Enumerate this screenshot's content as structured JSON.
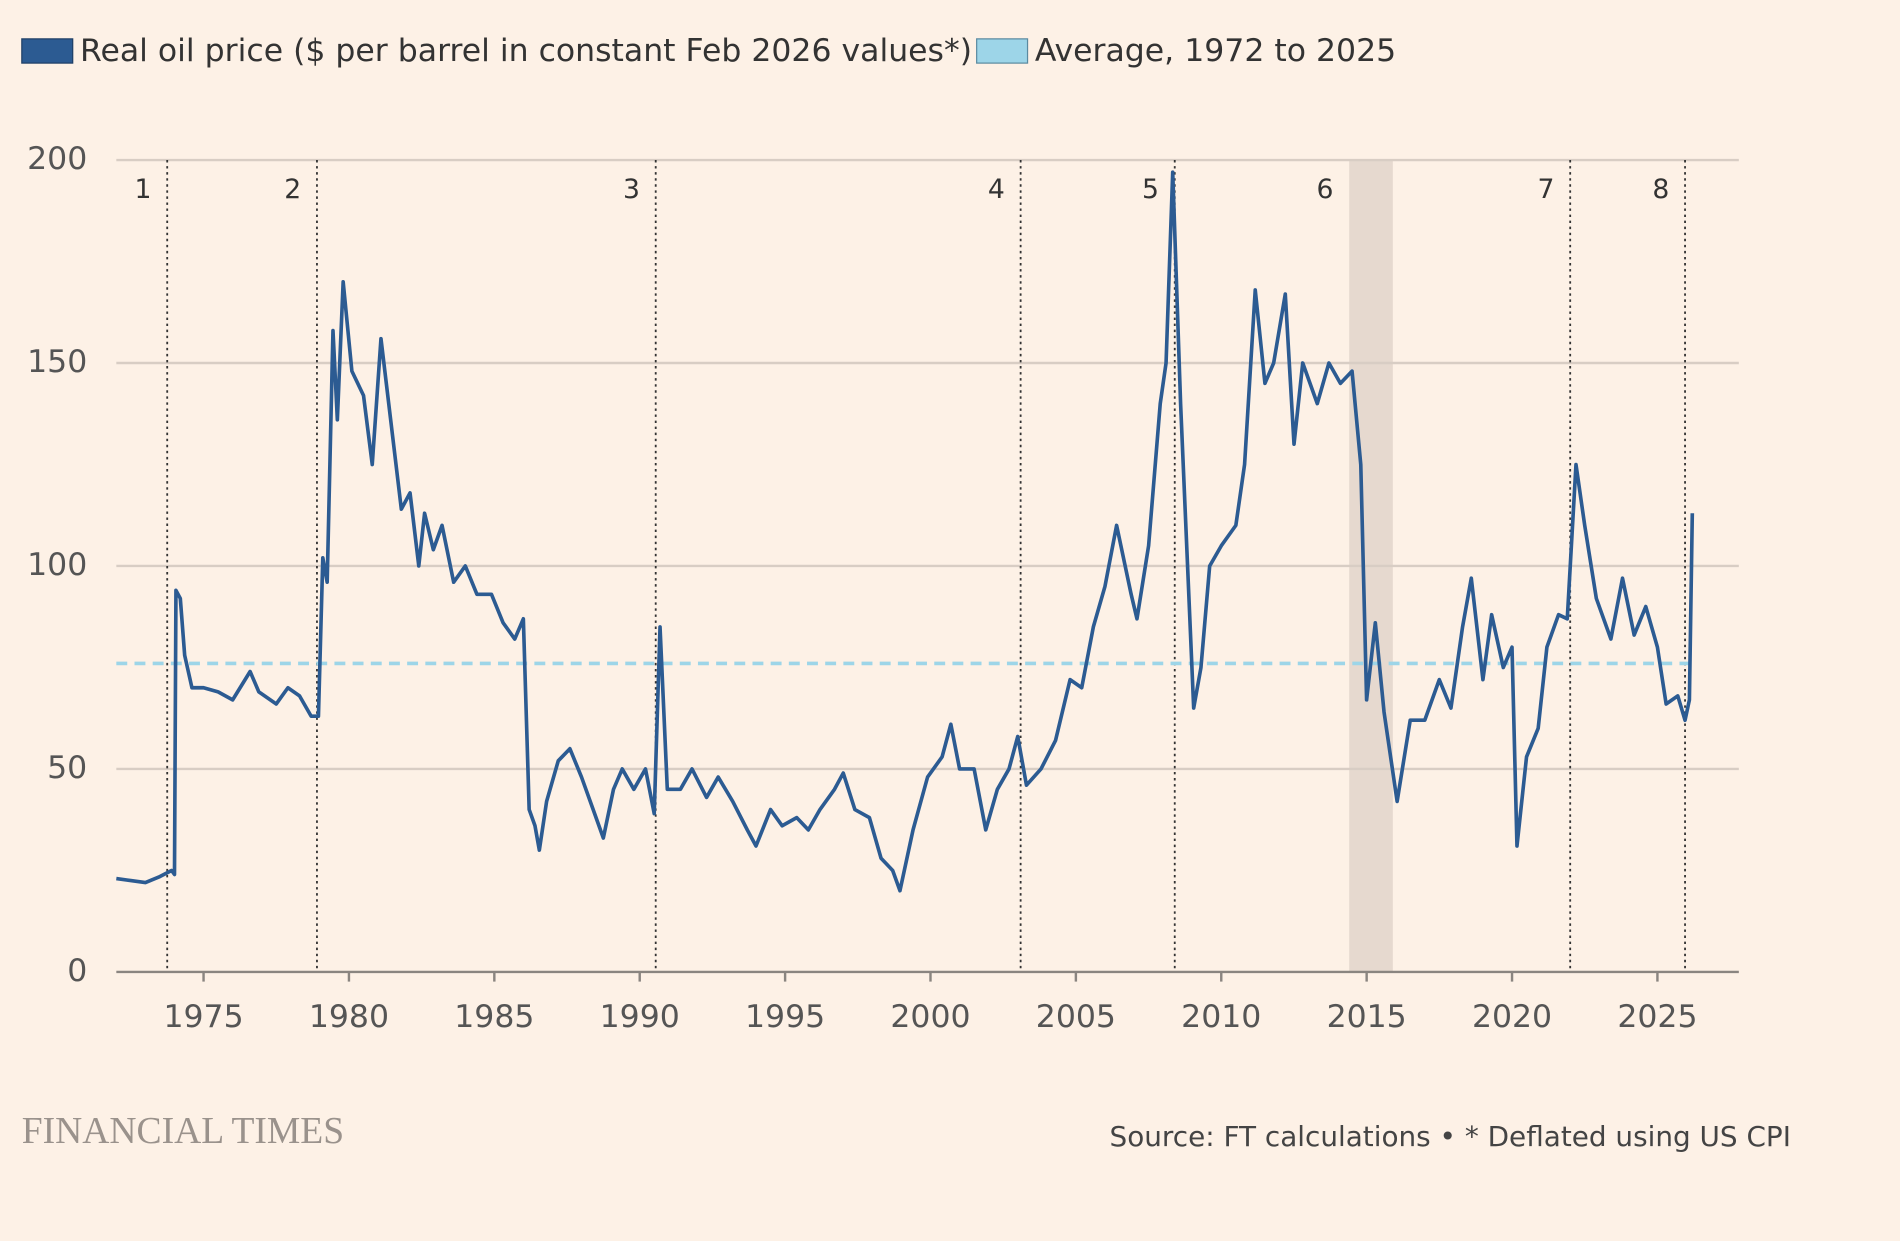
{
  "chart_data": {
    "type": "line",
    "series": [
      {
        "name": "Real oil price ($ per barrel in constant Feb 2026 values*)",
        "color": "#2c5b92",
        "values": [
          23,
          22.5,
          22,
          23.5,
          25,
          24,
          94,
          92,
          78,
          70,
          70,
          69,
          67,
          74,
          69,
          66,
          70,
          68,
          63,
          63,
          102,
          96,
          158,
          136,
          170,
          148,
          142,
          125,
          156,
          132,
          114,
          118,
          100,
          113,
          104,
          110,
          96,
          100,
          93,
          93,
          86,
          82,
          87,
          40,
          36,
          30,
          42,
          52,
          55,
          48,
          40,
          33,
          45,
          50,
          45,
          50,
          39,
          85,
          45,
          45,
          50,
          43,
          48,
          42,
          35,
          31,
          40,
          36,
          38,
          35,
          40,
          45,
          49,
          40,
          38,
          28,
          25,
          20,
          35,
          48,
          53,
          61,
          50,
          50,
          35,
          45,
          50,
          58,
          46,
          50,
          57,
          72,
          70,
          85,
          95,
          110,
          93,
          87,
          105,
          140,
          150,
          197,
          140,
          65,
          75,
          100,
          105,
          110,
          125,
          168,
          145,
          150,
          167,
          130,
          150,
          140,
          150,
          145,
          148,
          125,
          67,
          86,
          64,
          42,
          62,
          62,
          72,
          65,
          85,
          97,
          72,
          88,
          75,
          80,
          31,
          53,
          60,
          80,
          88,
          87,
          125,
          110,
          92,
          82,
          97,
          83,
          90,
          80,
          66,
          68,
          62,
          67,
          113
        ]
      }
    ],
    "x": [
      1972.0,
      1972.5,
      1973.0,
      1973.5,
      1973.9,
      1974.0,
      1974.05,
      1974.2,
      1974.35,
      1974.6,
      1975.0,
      1975.5,
      1976.0,
      1976.6,
      1976.9,
      1977.5,
      1977.9,
      1978.3,
      1978.7,
      1978.95,
      1979.1,
      1979.25,
      1979.45,
      1979.6,
      1979.8,
      1980.1,
      1980.5,
      1980.8,
      1981.1,
      1981.5,
      1981.8,
      1982.1,
      1982.4,
      1982.6,
      1982.9,
      1983.2,
      1983.6,
      1984.0,
      1984.4,
      1984.9,
      1985.3,
      1985.7,
      1986.0,
      1986.2,
      1986.4,
      1986.55,
      1986.8,
      1987.2,
      1987.6,
      1988.0,
      1988.4,
      1988.75,
      1989.1,
      1989.4,
      1989.8,
      1990.2,
      1990.5,
      1990.7,
      1990.95,
      1991.4,
      1991.8,
      1992.3,
      1992.7,
      1993.2,
      1993.7,
      1994.0,
      1994.5,
      1994.9,
      1995.4,
      1995.8,
      1996.2,
      1996.7,
      1997.0,
      1997.4,
      1997.9,
      1998.3,
      1998.7,
      1998.95,
      1999.4,
      1999.9,
      2000.4,
      2000.7,
      2001.0,
      2001.5,
      2001.9,
      2002.3,
      2002.7,
      2003.0,
      2003.3,
      2003.8,
      2004.3,
      2004.8,
      2005.2,
      2005.6,
      2006.0,
      2006.4,
      2006.9,
      2007.1,
      2007.5,
      2007.9,
      2008.1,
      2008.33,
      2008.6,
      2009.05,
      2009.3,
      2009.6,
      2010.0,
      2010.5,
      2010.8,
      2011.17,
      2011.5,
      2011.8,
      2012.2,
      2012.5,
      2012.8,
      2013.3,
      2013.7,
      2014.1,
      2014.5,
      2014.8,
      2015.0,
      2015.3,
      2015.6,
      2016.05,
      2016.5,
      2017.0,
      2017.5,
      2017.9,
      2018.3,
      2018.6,
      2019.0,
      2019.3,
      2019.7,
      2020.0,
      2020.17,
      2020.5,
      2020.9,
      2021.2,
      2021.6,
      2021.9,
      2022.2,
      2022.5,
      2022.9,
      2023.4,
      2023.8,
      2024.2,
      2024.6,
      2025.0,
      2025.3,
      2025.7,
      2025.95,
      2026.1,
      2026.2
    ],
    "average": {
      "name": "Average, 1972 to 2025",
      "value": 76,
      "color": "#9dd5e8"
    },
    "events": [
      {
        "label": "1",
        "x": 1973.75
      },
      {
        "label": "2",
        "x": 1978.9
      },
      {
        "label": "3",
        "x": 1990.55
      },
      {
        "label": "4",
        "x": 2003.1
      },
      {
        "label": "5",
        "x": 2008.4
      },
      {
        "label": "7",
        "x": 2022.0
      },
      {
        "label": "8",
        "x": 2025.95
      }
    ],
    "shaded_range": {
      "label": "6",
      "range": [
        2014.4,
        2015.9
      ]
    },
    "xlim": [
      1972,
      2027.8
    ],
    "ylim": [
      0,
      200
    ],
    "xticks": [
      1975,
      1980,
      1985,
      1990,
      1995,
      2000,
      2005,
      2010,
      2015,
      2020,
      2025
    ],
    "yticks": [
      0,
      50,
      100,
      150,
      200
    ],
    "grid": true,
    "brand": "FINANCIAL TIMES",
    "source": "Source: FT calculations • * Deflated using US CPI"
  }
}
